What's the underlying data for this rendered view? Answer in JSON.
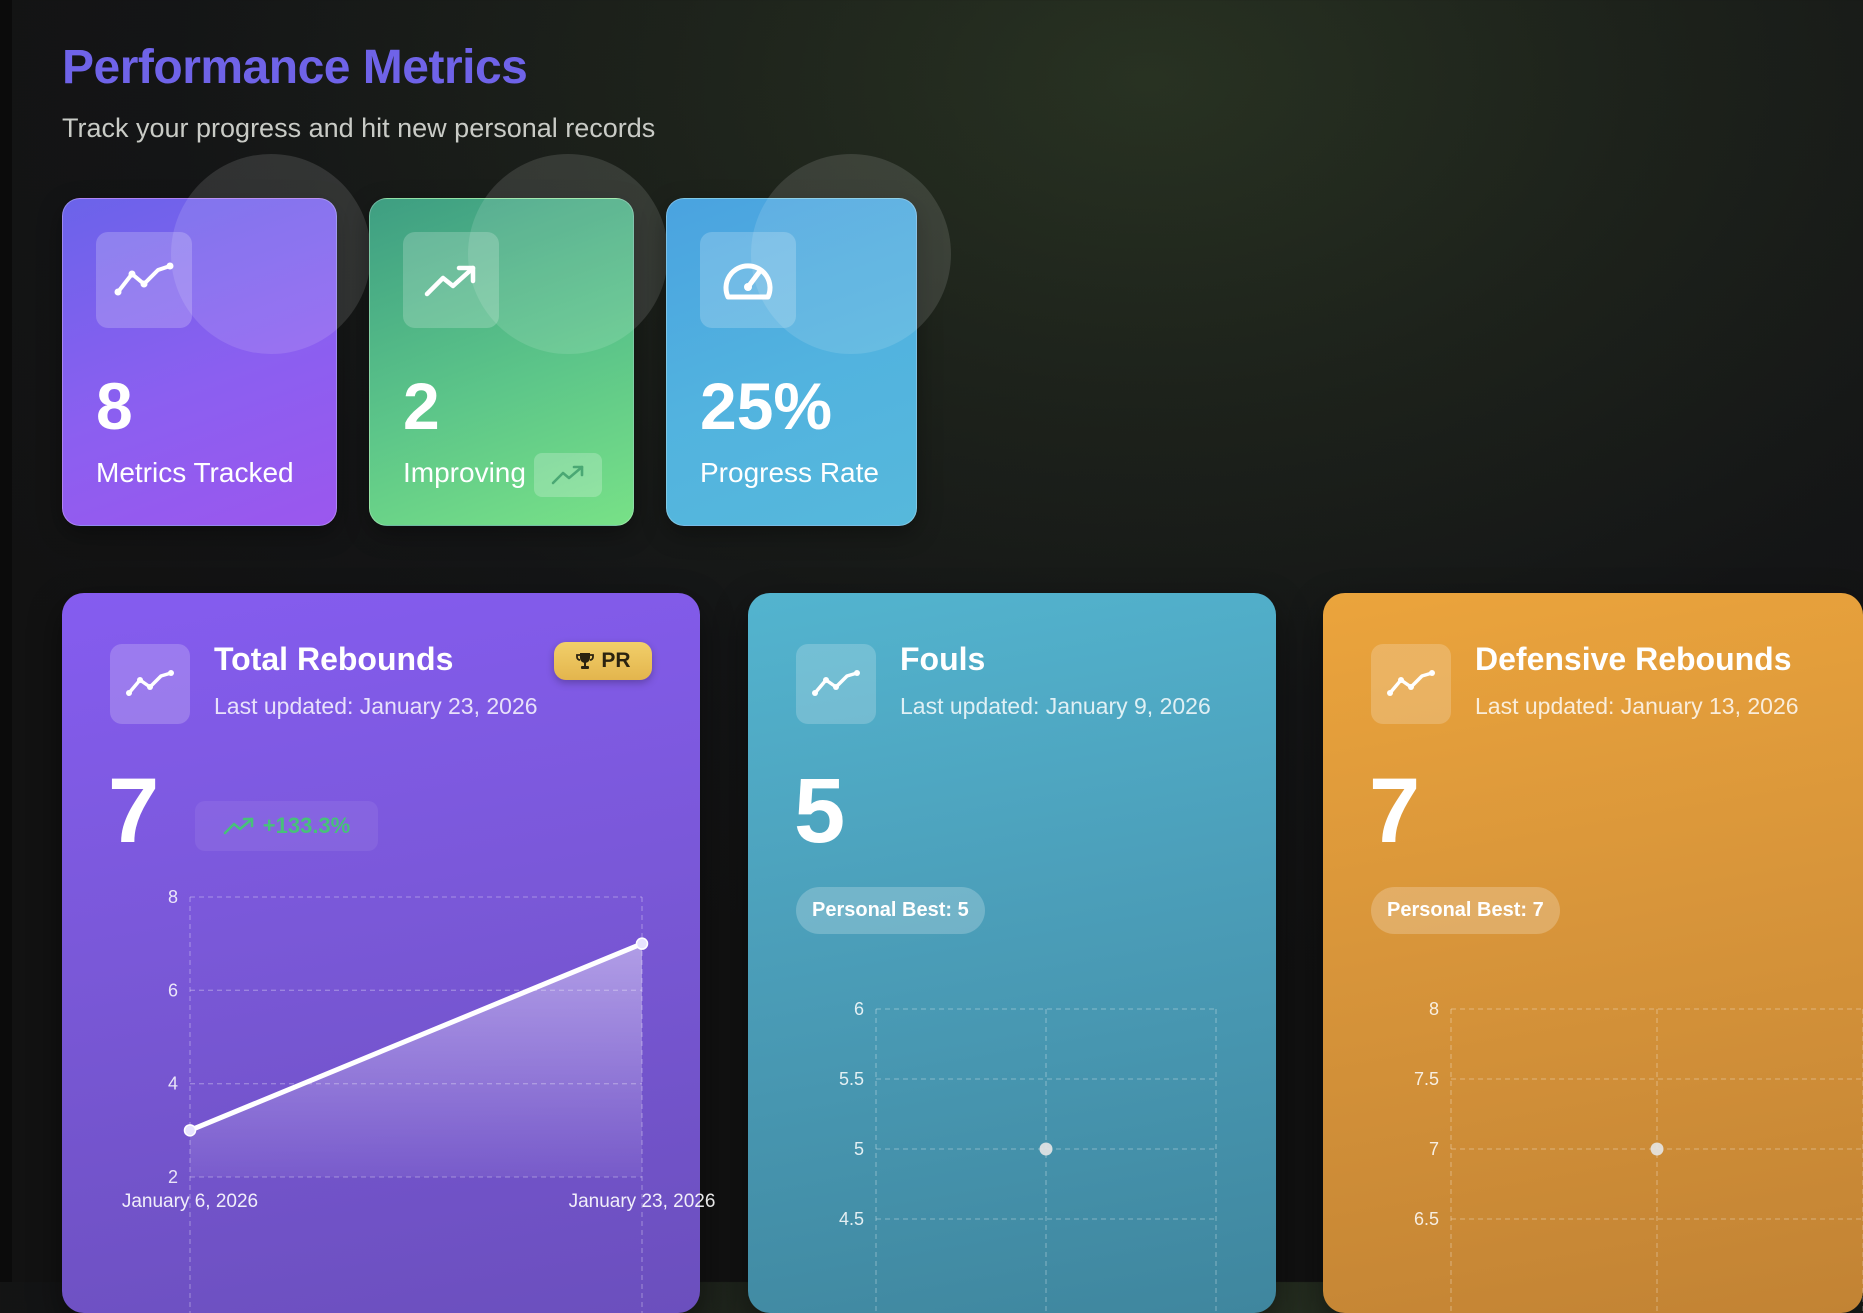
{
  "header": {
    "title": "Performance Metrics",
    "subtitle": "Track your progress and hit new personal records"
  },
  "stats": [
    {
      "value": "8",
      "label": "Metrics Tracked",
      "icon": "activity-line-icon"
    },
    {
      "value": "2",
      "label": "Improving",
      "icon": "trending-up-icon",
      "badge_icon": "trending-up-icon"
    },
    {
      "value": "25%",
      "label": "Progress Rate",
      "icon": "gauge-icon"
    }
  ],
  "cards": [
    {
      "name": "Total Rebounds",
      "updated": "Last updated: January 23, 2026",
      "value": "7",
      "badge": "PR",
      "change": "+133.3%",
      "color": "#7a58d8",
      "chart_data": {
        "type": "area",
        "x": [
          "January 6, 2026",
          "January 23, 2026"
        ],
        "values": [
          3,
          7
        ],
        "ylim": [
          2,
          8
        ],
        "yticks": [
          "8",
          "6",
          "4",
          "2"
        ],
        "xticks": [
          "January 6, 2026",
          "January 23, 2026"
        ],
        "grid": true
      }
    },
    {
      "name": "Fouls",
      "updated": "Last updated: January 9, 2026",
      "value": "5",
      "personal_best": "Personal Best: 5",
      "color": "#4b9eb9",
      "chart_data": {
        "type": "scatter",
        "values": [
          5
        ],
        "ylim_visible": [
          4.5,
          6
        ],
        "yticks": [
          "6",
          "5.5",
          "5",
          "4.5"
        ],
        "grid": true
      }
    },
    {
      "name": "Defensive Rebounds",
      "updated": "Last updated: January 13, 2026",
      "value": "7",
      "personal_best": "Personal Best: 7",
      "color": "#d8953a",
      "chart_data": {
        "type": "scatter",
        "values": [
          7
        ],
        "ylim_visible": [
          6.5,
          8
        ],
        "yticks": [
          "8",
          "7.5",
          "7",
          "6.5"
        ],
        "grid": true
      }
    }
  ]
}
